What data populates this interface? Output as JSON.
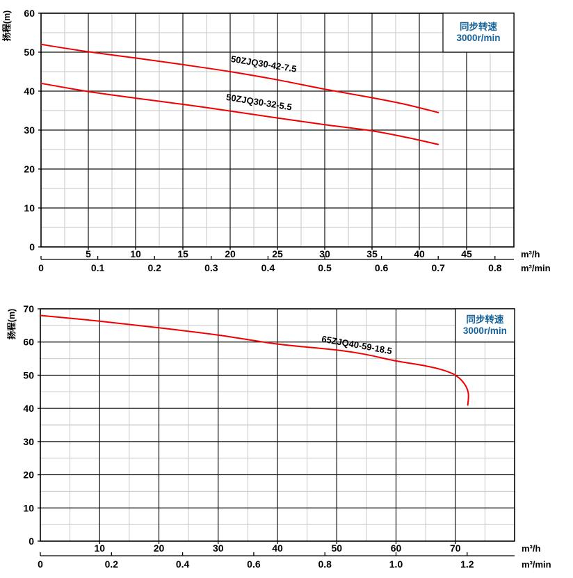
{
  "page": {
    "background": "#ffffff"
  },
  "colors": {
    "curve_red": "#f20000",
    "grid_major": "#111111",
    "grid_minor": "#c6c6c6",
    "plot_border": "#000000",
    "text": "#000000",
    "legend_blue": "#176399",
    "legend_bg": "#ffffff"
  },
  "chart_data": [
    {
      "type": "line",
      "title": "",
      "ylabel": "扬程(m)",
      "x_unit_primary": "m³/h",
      "x_unit_secondary": "m³/min",
      "legend": {
        "line1": "同步转速",
        "line2": "3000r/min"
      },
      "xlim": [
        0,
        50
      ],
      "ylim": [
        0,
        60
      ],
      "x_major_step": 5,
      "x_minor_step": 2.5,
      "y_major_step": 10,
      "y_minor_step": 5,
      "grid": true,
      "legend_position": "top-right",
      "legend_region": {
        "x0": 42.5,
        "y0": 50,
        "x1": 50,
        "y1": 60
      },
      "x_tick_labels": [
        {
          "v": 5,
          "t": "5"
        },
        {
          "v": 10,
          "t": "10"
        },
        {
          "v": 15,
          "t": "15"
        },
        {
          "v": 20,
          "t": "20"
        },
        {
          "v": 25,
          "t": "25"
        },
        {
          "v": 30,
          "t": "30"
        },
        {
          "v": 35,
          "t": "35"
        },
        {
          "v": 40,
          "t": "40"
        },
        {
          "v": 45,
          "t": "45"
        }
      ],
      "y_tick_labels": [
        {
          "v": 0,
          "t": "0"
        },
        {
          "v": 10,
          "t": "10"
        },
        {
          "v": 20,
          "t": "20"
        },
        {
          "v": 30,
          "t": "30"
        },
        {
          "v": 40,
          "t": "40"
        },
        {
          "v": 50,
          "t": "50"
        },
        {
          "v": 60,
          "t": "60"
        }
      ],
      "secondary_ticks": [
        {
          "v": 0,
          "t": "0"
        },
        {
          "v": 6,
          "t": "0.1"
        },
        {
          "v": 12,
          "t": "0.2"
        },
        {
          "v": 18,
          "t": "0.3"
        },
        {
          "v": 24,
          "t": "0.4"
        },
        {
          "v": 30,
          "t": "0.5"
        },
        {
          "v": 36,
          "t": "0.6"
        },
        {
          "v": 42,
          "t": "0.7"
        },
        {
          "v": 48,
          "t": "0.8"
        }
      ],
      "series": [
        {
          "name": "50ZJQ30-42-7.5",
          "label_x": 23.5,
          "label_y": 46.2,
          "label_angle": 9,
          "points": [
            [
              0,
              52
            ],
            [
              5,
              50.1
            ],
            [
              10,
              48.5
            ],
            [
              15,
              46.8
            ],
            [
              20,
              45
            ],
            [
              25,
              42.9
            ],
            [
              30,
              40.5
            ],
            [
              35,
              38.3
            ],
            [
              38.5,
              36.6
            ],
            [
              42,
              34.5
            ]
          ]
        },
        {
          "name": "50ZJQ30-32-5.5",
          "label_x": 23.0,
          "label_y": 36.4,
          "label_angle": 9,
          "points": [
            [
              0,
              42
            ],
            [
              5,
              39.9
            ],
            [
              10,
              38.2
            ],
            [
              15,
              36.6
            ],
            [
              20,
              34.9
            ],
            [
              25,
              33.1
            ],
            [
              30,
              31.4
            ],
            [
              35,
              29.8
            ],
            [
              38.5,
              28.2
            ],
            [
              42,
              26.3
            ]
          ]
        }
      ]
    },
    {
      "type": "line",
      "title": "",
      "ylabel": "扬程(m)",
      "x_unit_primary": "m³/h",
      "x_unit_secondary": "m³/min",
      "legend": {
        "line1": "同步转速",
        "line2": "3000r/min"
      },
      "xlim": [
        0,
        80
      ],
      "ylim": [
        0,
        70
      ],
      "x_major_step": 10,
      "x_minor_step": 5,
      "y_major_step": 10,
      "y_minor_step": 5,
      "grid": true,
      "legend_position": "top-right",
      "legend_region": {
        "x0": 70,
        "y0": 60,
        "x1": 80,
        "y1": 70
      },
      "x_tick_labels": [
        {
          "v": 10,
          "t": "10"
        },
        {
          "v": 20,
          "t": "20"
        },
        {
          "v": 30,
          "t": "30"
        },
        {
          "v": 40,
          "t": "40"
        },
        {
          "v": 50,
          "t": "50"
        },
        {
          "v": 60,
          "t": "60"
        },
        {
          "v": 70,
          "t": "70"
        }
      ],
      "y_tick_labels": [
        {
          "v": 0,
          "t": "0"
        },
        {
          "v": 10,
          "t": "10"
        },
        {
          "v": 20,
          "t": "20"
        },
        {
          "v": 30,
          "t": "30"
        },
        {
          "v": 40,
          "t": "40"
        },
        {
          "v": 50,
          "t": "50"
        },
        {
          "v": 60,
          "t": "60"
        },
        {
          "v": 70,
          "t": "70"
        }
      ],
      "secondary_ticks": [
        {
          "v": 0,
          "t": "0"
        },
        {
          "v": 12,
          "t": "0.2"
        },
        {
          "v": 24,
          "t": "0.4"
        },
        {
          "v": 36,
          "t": "0.6"
        },
        {
          "v": 48,
          "t": "0.8"
        },
        {
          "v": 60,
          "t": "1.0"
        },
        {
          "v": 72,
          "t": "1.2"
        }
      ],
      "series": [
        {
          "name": "65ZJQ40-59-18.5",
          "label_x": 53.3,
          "label_y": 58.2,
          "label_angle": 10,
          "points": [
            [
              0,
              68
            ],
            [
              10,
              66.3
            ],
            [
              20,
              64.3
            ],
            [
              30,
              62.1
            ],
            [
              40,
              59.4
            ],
            [
              50,
              57.6
            ],
            [
              55,
              56.2
            ],
            [
              60,
              54.3
            ],
            [
              65,
              52.8
            ],
            [
              68,
              51.5
            ],
            [
              70,
              50
            ],
            [
              71.5,
              47.5
            ],
            [
              72.2,
              44.5
            ],
            [
              72.1,
              41
            ]
          ]
        }
      ]
    }
  ]
}
